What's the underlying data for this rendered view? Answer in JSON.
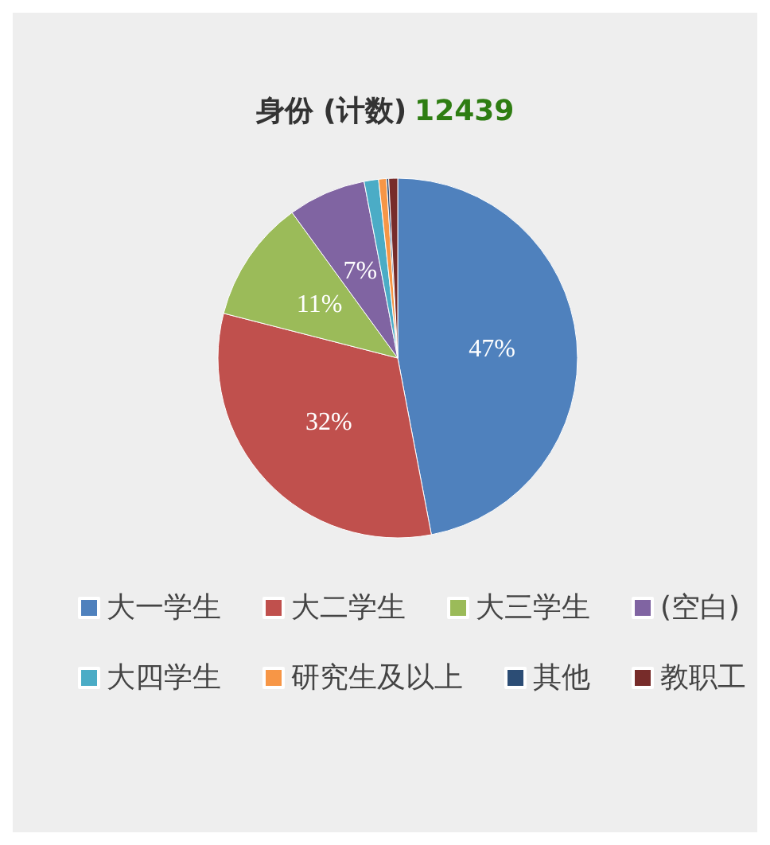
{
  "chart_data": {
    "type": "pie",
    "title": "身份 (计数)",
    "subtitle": "12439",
    "categories": [
      "大一学生",
      "大二学生",
      "大三学生",
      "(空白)",
      "大四学生",
      "研究生及以上",
      "其他",
      "教职工"
    ],
    "values": [
      47,
      32,
      11,
      7,
      1.3,
      0.7,
      0.2,
      0.8
    ],
    "colors": [
      "#4f81bd",
      "#c0504d",
      "#9bbb59",
      "#8064a2",
      "#4bacc6",
      "#f79646",
      "#2c4d75",
      "#772c2a"
    ],
    "value_labels": [
      "47%",
      "32%",
      "11%",
      "7%",
      null,
      null,
      null,
      null
    ],
    "legend": "bottom"
  }
}
